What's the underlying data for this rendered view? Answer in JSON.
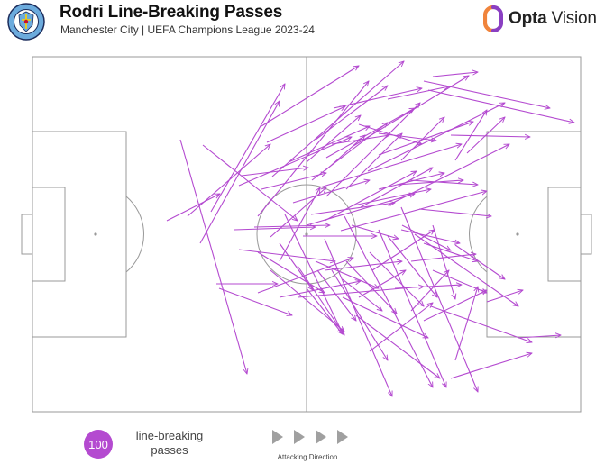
{
  "header": {
    "title": "Rodri Line-Breaking Passes",
    "subtitle": "Manchester City | UEFA Champions League 2023-24",
    "club_badge_text": "MANCHESTER CITY",
    "brand": {
      "bold": "Opta",
      "rest": " Vision"
    }
  },
  "colors": {
    "pass": "#b44ad0",
    "pitch_line": "#999999",
    "logo_orange": "#f0843c",
    "logo_purple": "#8a3fc2"
  },
  "footer": {
    "count": "100",
    "label_line1": "line-breaking",
    "label_line2": "passes",
    "direction_label": "Attacking Direction"
  },
  "passes": [
    [
      200,
      155,
      274,
      415
    ],
    [
      185,
      245,
      244,
      215
    ],
    [
      234,
      235,
      316,
      93
    ],
    [
      208,
      240,
      300,
      160
    ],
    [
      222,
      270,
      310,
      112
    ],
    [
      290,
      140,
      398,
      73
    ],
    [
      296,
      158,
      383,
      118
    ],
    [
      302,
      196,
      448,
      68
    ],
    [
      286,
      240,
      409,
      90
    ],
    [
      265,
      206,
      390,
      152
    ],
    [
      225,
      161,
      330,
      245
    ],
    [
      240,
      315,
      308,
      315
    ],
    [
      243,
      320,
      324,
      350
    ],
    [
      265,
      277,
      372,
      290
    ],
    [
      286,
      280,
      360,
      325
    ],
    [
      316,
      238,
      380,
      370
    ],
    [
      310,
      270,
      347,
      322
    ],
    [
      340,
      180,
      400,
      128
    ],
    [
      346,
      200,
      430,
      136
    ],
    [
      362,
      218,
      466,
      114
    ],
    [
      392,
      162,
      520,
      84
    ],
    [
      370,
      120,
      468,
      98
    ],
    [
      320,
      180,
      410,
      140
    ],
    [
      355,
      208,
      512,
      160
    ],
    [
      378,
      256,
      540,
      212
    ],
    [
      340,
      250,
      460,
      215
    ],
    [
      392,
      228,
      478,
      210
    ],
    [
      408,
      190,
      560,
      114
    ],
    [
      420,
      172,
      525,
      135
    ],
    [
      430,
      228,
      565,
      160
    ],
    [
      475,
      100,
      637,
      136
    ],
    [
      480,
      85,
      530,
      80
    ],
    [
      470,
      90,
      610,
      120
    ],
    [
      500,
      150,
      588,
      152
    ],
    [
      465,
      232,
      545,
      240
    ],
    [
      445,
      255,
      510,
      270
    ],
    [
      430,
      262,
      485,
      330
    ],
    [
      410,
      280,
      470,
      340
    ],
    [
      384,
      290,
      440,
      348
    ],
    [
      368,
      300,
      430,
      400
    ],
    [
      380,
      310,
      424,
      345
    ],
    [
      340,
      320,
      380,
      371
    ],
    [
      360,
      300,
      446,
      290
    ],
    [
      310,
      330,
      400,
      312
    ],
    [
      330,
      330,
      470,
      318
    ],
    [
      360,
      265,
      435,
      440
    ],
    [
      382,
      240,
      480,
      430
    ],
    [
      420,
      255,
      495,
      430
    ],
    [
      445,
      230,
      530,
      435
    ],
    [
      460,
      260,
      575,
      340
    ],
    [
      470,
      270,
      530,
      290
    ],
    [
      480,
      300,
      540,
      325
    ],
    [
      456,
      290,
      528,
      282
    ],
    [
      480,
      250,
      505,
      332
    ],
    [
      455,
      200,
      530,
      205
    ],
    [
      478,
      340,
      590,
      380
    ],
    [
      500,
      420,
      590,
      392
    ],
    [
      470,
      356,
      540,
      322
    ],
    [
      575,
      375,
      622,
      372
    ],
    [
      505,
      272,
      560,
      310
    ],
    [
      350,
      290,
      420,
      320
    ],
    [
      300,
      300,
      382,
      368
    ],
    [
      390,
      250,
      442,
      265
    ],
    [
      336,
      262,
      418,
      262
    ],
    [
      300,
      263,
      362,
      208
    ],
    [
      290,
      210,
      362,
      192
    ],
    [
      368,
      160,
      432,
      150
    ],
    [
      398,
      138,
      468,
      160
    ],
    [
      420,
      148,
      484,
      156
    ],
    [
      430,
      110,
      498,
      96
    ],
    [
      360,
      190,
      405,
      150
    ],
    [
      384,
      210,
      446,
      148
    ],
    [
      400,
      230,
      480,
      186
    ],
    [
      420,
      210,
      493,
      192
    ],
    [
      445,
      178,
      493,
      130
    ],
    [
      310,
      290,
      355,
      208
    ],
    [
      325,
      225,
      410,
      200
    ],
    [
      345,
      238,
      438,
      225
    ],
    [
      360,
      245,
      462,
      190
    ],
    [
      282,
      252,
      366,
      250
    ],
    [
      260,
      255,
      350,
      252
    ],
    [
      268,
      195,
      342,
      186
    ],
    [
      350,
      155,
      430,
      95
    ],
    [
      362,
      175,
      460,
      120
    ],
    [
      440,
      205,
      514,
      200
    ],
    [
      446,
      250,
      500,
      278
    ],
    [
      413,
      300,
      482,
      255
    ],
    [
      398,
      330,
      450,
      300
    ],
    [
      438,
      320,
      512,
      316
    ],
    [
      395,
      350,
      488,
      420
    ],
    [
      456,
      345,
      498,
      300
    ],
    [
      505,
      178,
      540,
      122
    ],
    [
      518,
      170,
      560,
      130
    ],
    [
      540,
      335,
      580,
      322
    ],
    [
      505,
      400,
      530,
      318
    ],
    [
      380,
      330,
      475,
      375
    ],
    [
      410,
      390,
      480,
      336
    ],
    [
      330,
      295,
      382,
      372
    ],
    [
      352,
      300,
      395,
      356
    ],
    [
      286,
      325,
      392,
      286
    ]
  ]
}
